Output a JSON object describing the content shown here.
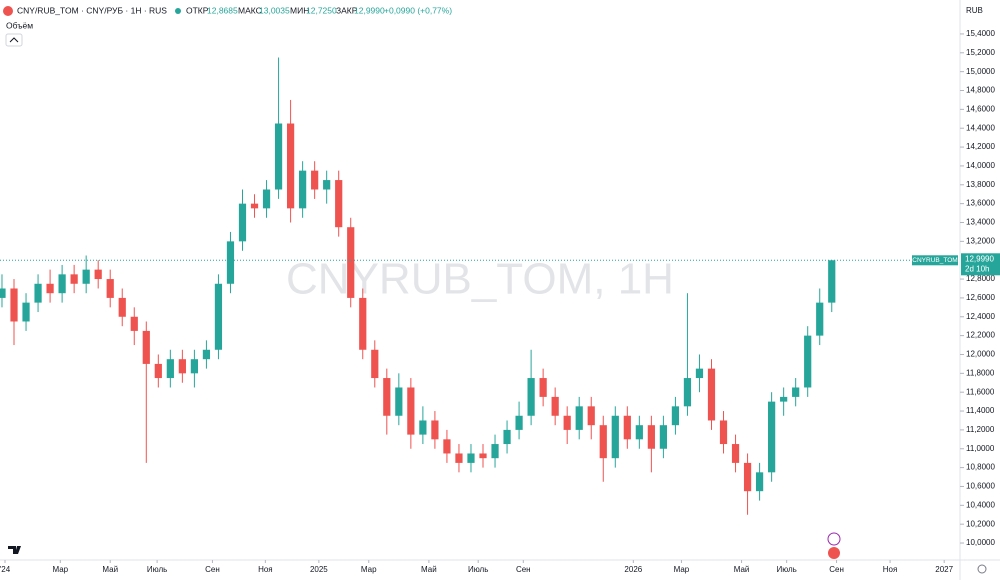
{
  "header": {
    "title": "CNY/RUB_TOM · CNY/РУБ · 1H · RUS",
    "open_label": "ОТКР",
    "open": "12,8685",
    "high_label": "МАКС",
    "high": "13,0035",
    "low_label": "МИН",
    "low": "12,7250",
    "close_label": "ЗАКР",
    "close": "12,9990",
    "change": "+0,0990 (+0,77%)",
    "volume_label": "Объём",
    "currency": "RUB"
  },
  "chart_data": {
    "type": "candlestick",
    "watermark": "CNYRUB_TOM, 1H",
    "x": [
      0,
      2,
      4,
      6,
      8,
      10,
      12,
      14,
      16,
      18,
      20,
      22,
      24,
      26,
      28,
      30,
      32,
      34,
      36,
      38,
      40,
      42,
      44,
      46,
      48,
      50,
      52,
      54,
      56,
      58,
      60,
      62,
      64,
      66,
      68,
      70,
      72,
      74,
      76,
      78,
      80,
      82,
      84,
      86,
      88,
      90,
      92,
      94,
      96,
      98,
      100,
      102,
      104,
      106,
      108,
      110,
      112,
      114,
      116,
      118,
      120,
      122,
      124,
      126,
      128,
      130,
      132,
      134,
      136,
      138
    ],
    "open": [
      12.6,
      12.7,
      12.35,
      12.55,
      12.75,
      12.65,
      12.85,
      12.75,
      12.9,
      12.8,
      12.6,
      12.4,
      12.25,
      11.9,
      11.75,
      11.95,
      11.8,
      11.95,
      12.05,
      12.75,
      13.2,
      13.6,
      13.55,
      13.75,
      14.45,
      13.55,
      13.95,
      13.75,
      13.85,
      13.35,
      12.6,
      12.05,
      11.75,
      11.35,
      11.65,
      11.15,
      11.3,
      11.1,
      10.95,
      10.85,
      10.95,
      10.9,
      11.05,
      11.2,
      11.35,
      11.75,
      11.55,
      11.35,
      11.2,
      11.45,
      11.25,
      10.9,
      11.35,
      11.1,
      11.25,
      11.0,
      11.25,
      11.45,
      11.75,
      11.85,
      11.3,
      11.05,
      10.85,
      10.55,
      10.75,
      11.5,
      11.55,
      11.65,
      12.2,
      12.55
    ],
    "high": [
      12.85,
      12.8,
      12.65,
      12.85,
      12.9,
      12.95,
      12.95,
      13.05,
      13.0,
      12.9,
      12.7,
      12.5,
      12.35,
      12.0,
      12.05,
      12.05,
      12.05,
      12.15,
      12.85,
      13.3,
      13.75,
      13.7,
      13.85,
      15.15,
      14.7,
      14.05,
      14.05,
      13.95,
      13.95,
      13.45,
      12.7,
      12.15,
      11.85,
      11.8,
      11.75,
      11.45,
      11.4,
      11.2,
      11.05,
      11.05,
      11.05,
      11.15,
      11.3,
      11.5,
      12.05,
      11.85,
      11.65,
      11.45,
      11.55,
      11.55,
      11.35,
      11.45,
      11.45,
      11.35,
      11.35,
      11.35,
      11.55,
      12.65,
      12.0,
      11.95,
      11.4,
      11.15,
      10.95,
      10.85,
      11.6,
      11.65,
      11.75,
      12.3,
      12.7,
      13.0035
    ],
    "low": [
      12.5,
      12.1,
      12.25,
      12.45,
      12.55,
      12.55,
      12.65,
      12.65,
      12.7,
      12.5,
      12.3,
      12.1,
      10.85,
      11.65,
      11.65,
      11.7,
      11.65,
      11.85,
      11.95,
      12.65,
      13.1,
      13.45,
      13.45,
      13.65,
      13.4,
      13.45,
      13.65,
      13.6,
      13.25,
      12.5,
      11.95,
      11.65,
      11.15,
      11.25,
      11.0,
      11.05,
      11.0,
      10.85,
      10.75,
      10.75,
      10.8,
      10.8,
      10.95,
      11.1,
      11.25,
      11.45,
      11.25,
      11.05,
      11.1,
      11.1,
      10.65,
      10.8,
      11.0,
      11.0,
      10.75,
      10.9,
      11.15,
      11.35,
      11.6,
      11.2,
      10.95,
      10.75,
      10.3,
      10.45,
      10.65,
      11.35,
      11.45,
      11.55,
      12.1,
      12.45
    ],
    "close": [
      12.7,
      12.35,
      12.55,
      12.75,
      12.65,
      12.85,
      12.75,
      12.9,
      12.8,
      12.6,
      12.4,
      12.25,
      11.9,
      11.75,
      11.95,
      11.8,
      11.95,
      12.05,
      12.75,
      13.2,
      13.6,
      13.55,
      13.75,
      14.45,
      13.55,
      13.95,
      13.75,
      13.85,
      13.35,
      12.6,
      12.05,
      11.75,
      11.35,
      11.65,
      11.15,
      11.3,
      11.1,
      10.95,
      10.85,
      10.95,
      10.9,
      11.05,
      11.2,
      11.35,
      11.75,
      11.55,
      11.35,
      11.2,
      11.45,
      11.25,
      10.9,
      11.35,
      11.1,
      11.25,
      11.0,
      11.25,
      11.45,
      11.75,
      11.85,
      11.3,
      11.05,
      10.85,
      10.55,
      10.75,
      11.5,
      11.55,
      11.65,
      12.2,
      12.55,
      12.999
    ],
    "up_color": "#26a69a",
    "down_color": "#ef5350",
    "xlim": [
      -0.33,
      159.33
    ],
    "xticks": [
      {
        "value": 0.5,
        "label": "'24"
      },
      {
        "value": 9.7,
        "label": "Мар"
      },
      {
        "value": 18,
        "label": "Май"
      },
      {
        "value": 25.8,
        "label": "Июль"
      },
      {
        "value": 35,
        "label": "Сен"
      },
      {
        "value": 43.8,
        "label": "Ноя"
      },
      {
        "value": 52.7,
        "label": "2025"
      },
      {
        "value": 61,
        "label": "Мар"
      },
      {
        "value": 71,
        "label": "Май"
      },
      {
        "value": 79.2,
        "label": "Июль"
      },
      {
        "value": 86.7,
        "label": "Сен"
      },
      {
        "value": 105,
        "label": "2026"
      },
      {
        "value": 113,
        "label": "Мар"
      },
      {
        "value": 123,
        "label": "Май"
      },
      {
        "value": 130.5,
        "label": "Июль"
      },
      {
        "value": 138.8,
        "label": "Сен"
      },
      {
        "value": 147.7,
        "label": "Ноя"
      },
      {
        "value": 156.7,
        "label": "2027"
      }
    ],
    "ylim": [
      9.82,
      15.76
    ],
    "yticks": [
      {
        "value": 10.0,
        "label": "10,0000"
      },
      {
        "value": 10.2,
        "label": "10,2000"
      },
      {
        "value": 10.4,
        "label": "10,4000"
      },
      {
        "value": 10.6,
        "label": "10,6000"
      },
      {
        "value": 10.8,
        "label": "10,8000"
      },
      {
        "value": 11.0,
        "label": "11,0000"
      },
      {
        "value": 11.2,
        "label": "11,2000"
      },
      {
        "value": 11.4,
        "label": "11,4000"
      },
      {
        "value": 11.6,
        "label": "11,6000"
      },
      {
        "value": 11.8,
        "label": "11,8000"
      },
      {
        "value": 12.0,
        "label": "12,0000"
      },
      {
        "value": 12.2,
        "label": "12,2000"
      },
      {
        "value": 12.4,
        "label": "12,4000"
      },
      {
        "value": 12.6,
        "label": "12,6000"
      },
      {
        "value": 12.8,
        "label": "12,8000"
      },
      {
        "value": 13.2,
        "label": "13,2000"
      },
      {
        "value": 13.4,
        "label": "13,4000"
      },
      {
        "value": 13.6,
        "label": "13,6000"
      },
      {
        "value": 13.8,
        "label": "13,8000"
      },
      {
        "value": 14.0,
        "label": "14,0000"
      },
      {
        "value": 14.2,
        "label": "14,2000"
      },
      {
        "value": 14.4,
        "label": "14,4000"
      },
      {
        "value": 14.6,
        "label": "14,6000"
      },
      {
        "value": 14.8,
        "label": "14,8000"
      },
      {
        "value": 15.0,
        "label": "15,0000"
      },
      {
        "value": 15.2,
        "label": "15,2000"
      },
      {
        "value": 15.4,
        "label": "15,4000"
      }
    ],
    "grid": false,
    "last_price": {
      "value": 12.999,
      "label": "12,9990"
    },
    "last_symbol": "CNYRUB_TOM",
    "countdown": "2d 10h",
    "last_color": "#26a69a"
  }
}
